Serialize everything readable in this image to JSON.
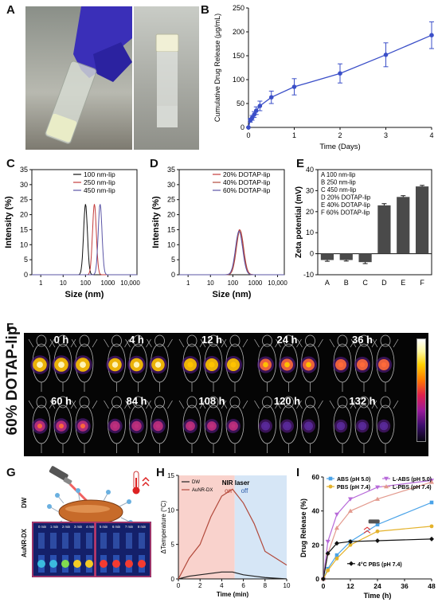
{
  "panels": {
    "A": "A",
    "B": "B",
    "C": "C",
    "D": "D",
    "E": "E",
    "F": "F",
    "G": "G",
    "H": "H",
    "I": "I"
  },
  "colors": {
    "blue": "#3b4fc8",
    "black": "#111111",
    "red": "#c43c3c",
    "purple": "#5b55a6",
    "bar": "#4a4a4a",
    "h_red": "#b24a3c",
    "h_black": "#222222"
  },
  "chart_data": [
    {
      "id": "B",
      "type": "line",
      "xlabel": "Time (Days)",
      "ylabel": "Cumulative Drug Release (μg/mL)",
      "xlim": [
        0,
        4
      ],
      "ylim": [
        0,
        250
      ],
      "xticks": [
        0,
        1,
        2,
        3,
        4
      ],
      "yticks": [
        0,
        50,
        100,
        150,
        200,
        250
      ],
      "x": [
        0,
        0.04,
        0.08,
        0.125,
        0.17,
        0.25,
        0.5,
        1,
        2,
        3,
        4
      ],
      "y": [
        0,
        15,
        20,
        27,
        35,
        45,
        63,
        85,
        113,
        152,
        193
      ],
      "yerr": [
        0,
        4,
        5,
        6,
        8,
        10,
        13,
        17,
        20,
        25,
        28
      ]
    },
    {
      "id": "C",
      "type": "line",
      "xlabel": "Size (nm)",
      "ylabel": "Intensity (%)",
      "xscale": "log",
      "xlim": [
        0.4,
        20000
      ],
      "ylim": [
        0,
        35
      ],
      "xticks": [
        "1",
        "10",
        "100",
        "1000",
        "10,000"
      ],
      "yticks": [
        0,
        5,
        10,
        15,
        20,
        25,
        30,
        35
      ],
      "series": [
        {
          "name": "100 nm-lip",
          "peak": 100,
          "height": 23.5
        },
        {
          "name": "250 nm-lip",
          "peak": 250,
          "height": 23.5
        },
        {
          "name": "450 nm-lip",
          "peak": 450,
          "height": 23.5
        }
      ]
    },
    {
      "id": "D",
      "type": "line",
      "xlabel": "Size (nm)",
      "ylabel": "Intensity (%)",
      "xscale": "log",
      "xlim": [
        0.4,
        20000
      ],
      "ylim": [
        0,
        35
      ],
      "xticks": [
        "1",
        "10",
        "100",
        "1000",
        "10,000"
      ],
      "yticks": [
        0,
        5,
        10,
        15,
        20,
        25,
        30,
        35
      ],
      "series": [
        {
          "name": "20% DOTAP-lip",
          "peak": 200,
          "height": 15
        },
        {
          "name": "40% DOTAP-lip",
          "peak": 210,
          "height": 14.8
        },
        {
          "name": "60% DOTAP-lip",
          "peak": 190,
          "height": 14.5
        }
      ]
    },
    {
      "id": "E",
      "type": "bar",
      "ylabel": "Zeta potential (mV)",
      "ylim": [
        -10,
        40
      ],
      "yticks": [
        -10,
        0,
        10,
        20,
        30,
        40
      ],
      "categories": [
        "A",
        "B",
        "C",
        "D",
        "E",
        "F"
      ],
      "values": [
        -3,
        -3,
        -4,
        23,
        27,
        32
      ],
      "yerr": [
        0.6,
        0.5,
        0.7,
        0.8,
        0.6,
        0.5
      ],
      "legend": [
        "A  100 nm-lip",
        "B  250 nm-lip",
        "C  450 nm-lip",
        "D  20% DOTAP-lip",
        "E  40% DOTAP-lip",
        "F  60% DOTAP-lip"
      ]
    },
    {
      "id": "H",
      "type": "line",
      "xlabel": "Time (min)",
      "ylabel": "ΔTemperature (°C)",
      "xlim": [
        0,
        10
      ],
      "ylim": [
        0,
        15
      ],
      "xticks": [
        0,
        2,
        4,
        6,
        8,
        10
      ],
      "yticks": [
        0,
        5,
        10,
        15
      ],
      "series": [
        {
          "name": "DW",
          "x": [
            0,
            1,
            2,
            3,
            4,
            5,
            6,
            7,
            8,
            9,
            10
          ],
          "y": [
            0,
            0.4,
            0.6,
            0.8,
            1.0,
            1.0,
            0.6,
            0.4,
            0.2,
            0.1,
            0
          ]
        },
        {
          "name": "AuNR-DX",
          "x": [
            0,
            1,
            2,
            3,
            4,
            5,
            6,
            7,
            8,
            9,
            10
          ],
          "y": [
            0,
            3,
            5,
            9,
            12,
            13,
            11,
            8,
            4,
            3,
            2
          ]
        }
      ],
      "annotation_title": "NIR laser",
      "annotation_on": "on",
      "annotation_off": "off"
    },
    {
      "id": "I",
      "type": "line",
      "xlabel": "Time (h)",
      "ylabel": "Drug Release (%)",
      "xlim": [
        0,
        48
      ],
      "ylim": [
        0,
        60
      ],
      "xticks": [
        0,
        12,
        24,
        36,
        48
      ],
      "yticks": [
        0,
        20,
        40,
        60
      ],
      "x": [
        0,
        2,
        6,
        12,
        24,
        48
      ],
      "series": [
        {
          "name": "ABS (pH 5.0)",
          "y": [
            0,
            6,
            14,
            22,
            32,
            45
          ],
          "color": "#4aa3e8",
          "marker": "square"
        },
        {
          "name": "L-ABS (pH 5.0)",
          "y": [
            0,
            22,
            38,
            47,
            54,
            58
          ],
          "color": "#b76ad9",
          "marker": "triangle-down"
        },
        {
          "name": "PBS (pH 7.4)",
          "y": [
            0,
            5,
            12,
            20,
            28,
            31
          ],
          "color": "#e4b22b",
          "marker": "circle"
        },
        {
          "name": "L-PBS (pH 7.4)",
          "y": [
            0,
            15,
            30,
            40,
            47,
            57
          ],
          "color": "#e39a8e",
          "marker": "triangle-up"
        },
        {
          "name": "4°C PBS (pH 7.4)",
          "y": [
            0,
            15,
            21,
            22,
            22.5,
            23.5
          ],
          "color": "#111111",
          "marker": "diamond"
        }
      ]
    }
  ],
  "imaging": {
    "label": "60% DOTAP-lip",
    "row1": [
      "0 h",
      "4 h",
      "12 h",
      "24 h",
      "36 h"
    ],
    "row2": [
      "60 h",
      "84 h",
      "108 h",
      "120 h",
      "132 h"
    ],
    "intensity_row1": [
      0.95,
      0.85,
      0.8,
      0.7,
      0.6
    ],
    "intensity_row2": [
      0.55,
      0.45,
      0.38,
      0.3,
      0.25
    ]
  },
  "thermal": {
    "row1_label": "DW",
    "row2_label": "AuNR-DX",
    "times_left": [
      "0 min",
      "1 min",
      "2 min",
      "3 min",
      "4 min"
    ],
    "times_right": [
      "5 min",
      "6 min",
      "7 min",
      "8 min"
    ]
  }
}
